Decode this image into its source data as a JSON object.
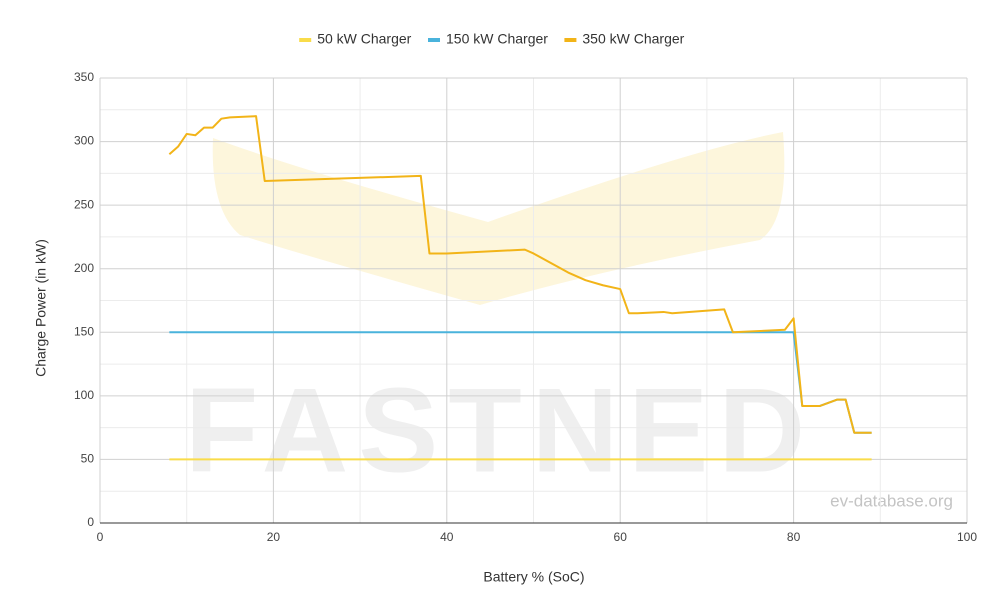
{
  "chart_data": {
    "type": "line",
    "xlabel": "Battery % (SoC)",
    "ylabel": "Charge Power (in kW)",
    "watermark": "FASTNED",
    "credit": "ev-database.org",
    "xlim": [
      0,
      100
    ],
    "xticks": [
      0,
      20,
      40,
      60,
      80,
      100
    ],
    "ylim": [
      0,
      350
    ],
    "yticks": [
      0,
      50,
      100,
      150,
      200,
      250,
      300,
      350
    ],
    "grid": true,
    "minor_grid": true,
    "legend": "top",
    "series": [
      {
        "name": "50 kW Charger",
        "color": "#f9dc4a",
        "x": [
          8,
          89
        ],
        "values": [
          50,
          50
        ]
      },
      {
        "name": "150 kW Charger",
        "color": "#4ab3dc",
        "x": [
          8,
          80,
          81,
          83,
          85,
          86,
          87,
          89
        ],
        "values": [
          150,
          150,
          92,
          92,
          97,
          97,
          71,
          71
        ]
      },
      {
        "name": "350 kW Charger",
        "color": "#f2b418",
        "x": [
          8,
          9,
          10,
          11,
          12,
          13,
          14,
          15,
          18,
          19,
          37,
          38,
          40,
          49,
          50,
          54,
          56,
          58,
          60,
          61,
          62,
          65,
          66,
          72,
          73,
          79,
          80,
          81,
          83,
          85,
          86,
          87,
          89
        ],
        "values": [
          290,
          296,
          306,
          305,
          311,
          311,
          318,
          319,
          320,
          269,
          273,
          212,
          212,
          215,
          212,
          197,
          191,
          187,
          184,
          165,
          165,
          166,
          165,
          168,
          150,
          152,
          161,
          92,
          92,
          97,
          97,
          71,
          71
        ]
      }
    ]
  }
}
